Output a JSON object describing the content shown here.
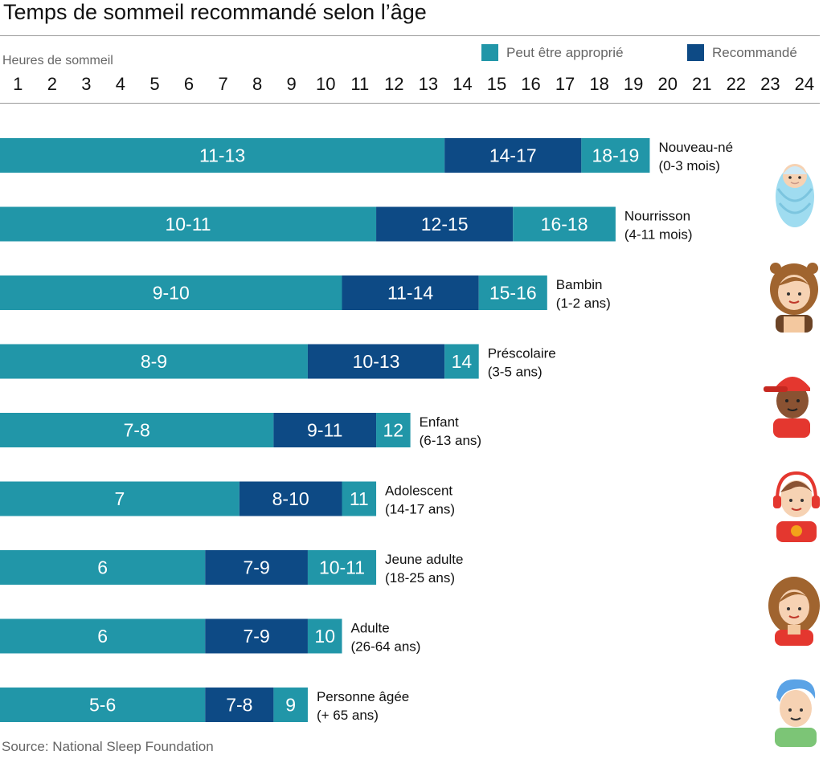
{
  "chart_data": {
    "type": "bar",
    "orientation": "horizontal-stacked",
    "title": "Temps de sommeil recommandé selon l’âge",
    "xlabel": "Heures de sommeil",
    "x_ticks": [
      "1",
      "2",
      "3",
      "4",
      "5",
      "6",
      "7",
      "8",
      "9",
      "10",
      "11",
      "12",
      "13",
      "14",
      "15",
      "16",
      "17",
      "18",
      "19",
      "20",
      "21",
      "22",
      "23",
      "24"
    ],
    "xlim": [
      0.5,
      24.5
    ],
    "legend": [
      {
        "name": "Peut être approprié",
        "color": "#2196a8"
      },
      {
        "name": "Recommandé",
        "color": "#0d4a85"
      }
    ],
    "legend_position": "top-right",
    "source": "Source: National Sleep Foundation",
    "categories": [
      {
        "name": "Nouveau-né",
        "range": "(0-3 mois)",
        "segments": [
          {
            "label": "11-13",
            "type": "Peut être approprié",
            "end": 13.5
          },
          {
            "label": "14-17",
            "type": "Recommandé",
            "end": 17.5
          },
          {
            "label": "18-19",
            "type": "Peut être approprié",
            "end": 19.5
          }
        ]
      },
      {
        "name": "Nourrisson",
        "range": "(4-11 mois)",
        "segments": [
          {
            "label": "10-11",
            "type": "Peut être approprié",
            "end": 11.5
          },
          {
            "label": "12-15",
            "type": "Recommandé",
            "end": 15.5
          },
          {
            "label": "16-18",
            "type": "Peut être approprié",
            "end": 18.5
          }
        ]
      },
      {
        "name": "Bambin",
        "range": "(1-2 ans)",
        "segments": [
          {
            "label": "9-10",
            "type": "Peut être approprié",
            "end": 10.5
          },
          {
            "label": "11-14",
            "type": "Recommandé",
            "end": 14.5
          },
          {
            "label": "15-16",
            "type": "Peut être approprié",
            "end": 16.5
          }
        ]
      },
      {
        "name": "Préscolaire",
        "range": "(3-5 ans)",
        "segments": [
          {
            "label": "8-9",
            "type": "Peut être approprié",
            "end": 9.5
          },
          {
            "label": "10-13",
            "type": "Recommandé",
            "end": 13.5
          },
          {
            "label": "14",
            "type": "Peut être approprié",
            "end": 14.5
          }
        ]
      },
      {
        "name": "Enfant",
        "range": "(6-13 ans)",
        "segments": [
          {
            "label": "7-8",
            "type": "Peut être approprié",
            "end": 8.5
          },
          {
            "label": "9-11",
            "type": "Recommandé",
            "end": 11.5
          },
          {
            "label": "12",
            "type": "Peut être approprié",
            "end": 12.5
          }
        ]
      },
      {
        "name": "Adolescent",
        "range": "(14-17 ans)",
        "segments": [
          {
            "label": "7",
            "type": "Peut être approprié",
            "end": 7.5
          },
          {
            "label": "8-10",
            "type": "Recommandé",
            "end": 10.5
          },
          {
            "label": "11",
            "type": "Peut être approprié",
            "end": 11.5
          }
        ]
      },
      {
        "name": "Jeune adulte",
        "range": "(18-25 ans)",
        "segments": [
          {
            "label": "6",
            "type": "Peut être approprié",
            "end": 6.5
          },
          {
            "label": "7-9",
            "type": "Recommandé",
            "end": 9.5
          },
          {
            "label": "10-11",
            "type": "Peut être approprié",
            "end": 11.5
          }
        ]
      },
      {
        "name": "Adulte",
        "range": "(26-64 ans)",
        "segments": [
          {
            "label": "6",
            "type": "Peut être approprié",
            "end": 6.5
          },
          {
            "label": "7-9",
            "type": "Recommandé",
            "end": 9.5
          },
          {
            "label": "10",
            "type": "Peut être approprié",
            "end": 10.5
          }
        ]
      },
      {
        "name": "Personne âgée",
        "range": "(+ 65 ans)",
        "segments": [
          {
            "label": "5-6",
            "type": "Peut être approprié",
            "end": 6.5
          },
          {
            "label": "7-8",
            "type": "Recommandé",
            "end": 8.5
          },
          {
            "label": "9",
            "type": "Peut être approprié",
            "end": 9.5
          }
        ]
      }
    ]
  },
  "avatars": [
    {
      "icon": "baby-icon"
    },
    {
      "icon": "toddler-girl-icon"
    },
    {
      "icon": "boy-red-cap-icon"
    },
    {
      "icon": "teen-headphones-icon"
    },
    {
      "icon": "woman-icon"
    },
    {
      "icon": "elderly-man-icon"
    }
  ]
}
